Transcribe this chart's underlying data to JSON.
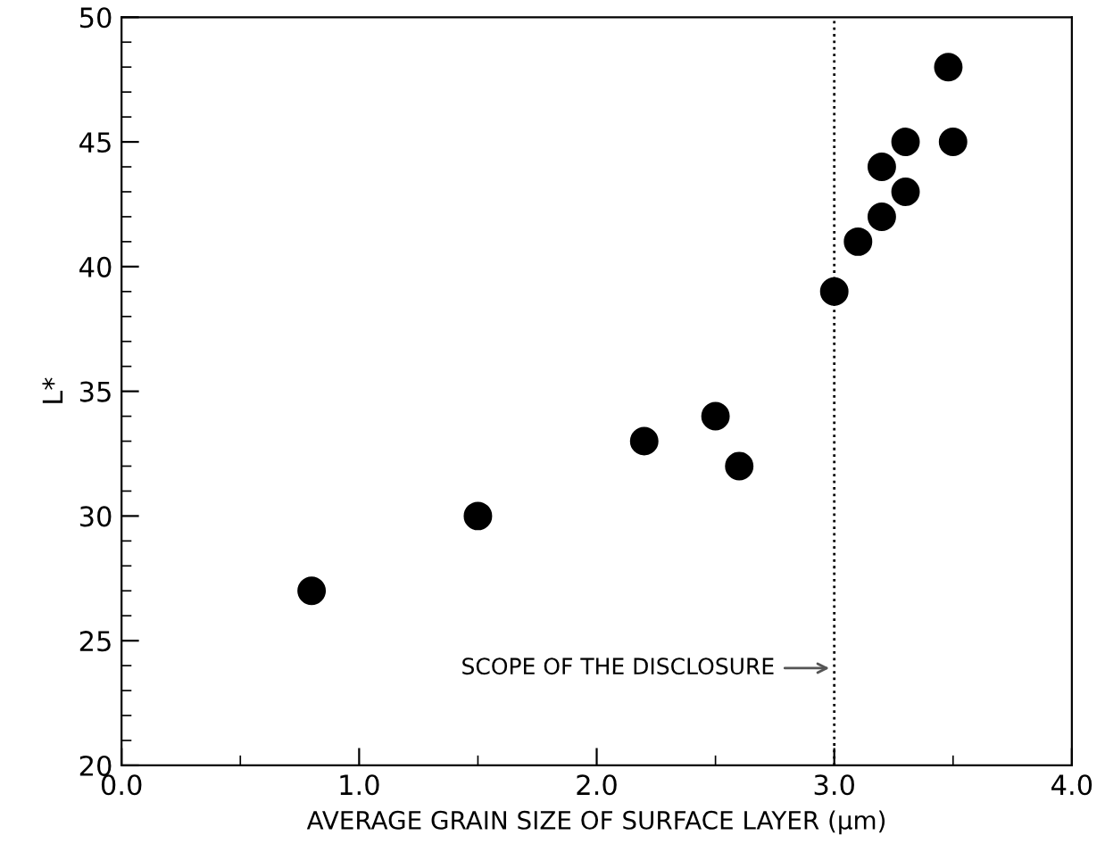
{
  "chart_data": {
    "type": "scatter",
    "xlabel": "AVERAGE GRAIN SIZE OF SURFACE LAYER (μm)",
    "ylabel": "L*",
    "x": [
      0.8,
      1.5,
      2.2,
      2.5,
      2.6,
      3.0,
      3.1,
      3.2,
      3.2,
      3.3,
      3.3,
      3.48,
      3.5
    ],
    "values": [
      27,
      30,
      33,
      34,
      32,
      39,
      41,
      42,
      44,
      43,
      45,
      48,
      45
    ],
    "color": "#000000",
    "marker": "circle",
    "xlim": [
      0,
      4
    ],
    "xticks": [
      {
        "value": 0,
        "label": "0.0"
      },
      {
        "value": 1,
        "label": "1.0"
      },
      {
        "value": 2,
        "label": "2.0"
      },
      {
        "value": 3,
        "label": "3.0"
      },
      {
        "value": 4,
        "label": "4.0"
      }
    ],
    "ylim": [
      20,
      50
    ],
    "yticks": [
      20,
      25,
      30,
      35,
      40,
      45,
      50
    ],
    "ref_lines": [
      {
        "axis": "x",
        "value": 3.0,
        "label": "SCOPE OF THE DISCLOSURE",
        "color": "#000000",
        "line_style": "dotted"
      }
    ],
    "grid": false,
    "legend": false
  }
}
